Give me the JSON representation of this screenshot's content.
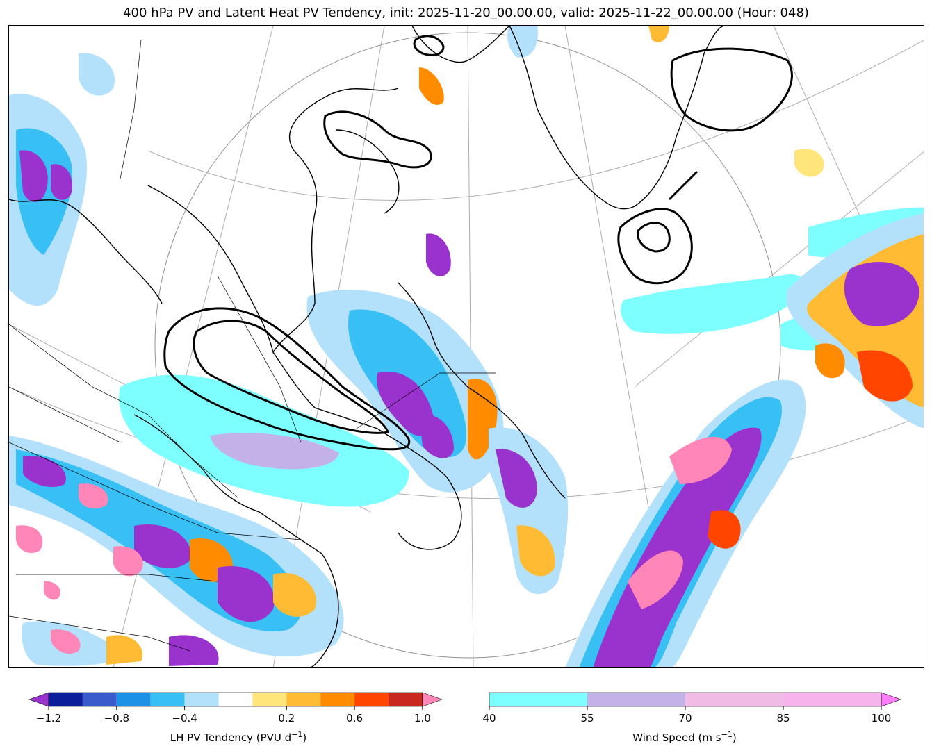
{
  "title": "400 hPa PV and Latent Heat PV Tendency, init: 2025-11-20_00.00.00, valid: 2025-11-22_00.00.00 (Hour: 048)",
  "colorbar_lh": {
    "label": "LH PV Tendency (PVU d",
    "label_sup": "−1",
    "label_end": ")",
    "ticks": [
      "−1.2",
      "−0.8",
      "−0.4",
      "0.2",
      "0.6",
      "1.0"
    ],
    "colors": [
      "#9a32cd",
      "#0d1e9a",
      "#3a5bcc",
      "#1c91e6",
      "#38c0f5",
      "#b3e1fb",
      "#ffffff",
      "#ffe57a",
      "#ffbb33",
      "#ff8c00",
      "#ff4500",
      "#c8281e",
      "#ff86b6"
    ]
  },
  "colorbar_wind": {
    "label": "Wind Speed (m s",
    "label_sup": "−1",
    "label_end": ")",
    "ticks": [
      "40",
      "55",
      "70",
      "85",
      "100"
    ],
    "colors": [
      "#7dffff",
      "#c3b2e8",
      "#f0bce6",
      "#f6b3ec",
      "#ff7dff"
    ]
  }
}
